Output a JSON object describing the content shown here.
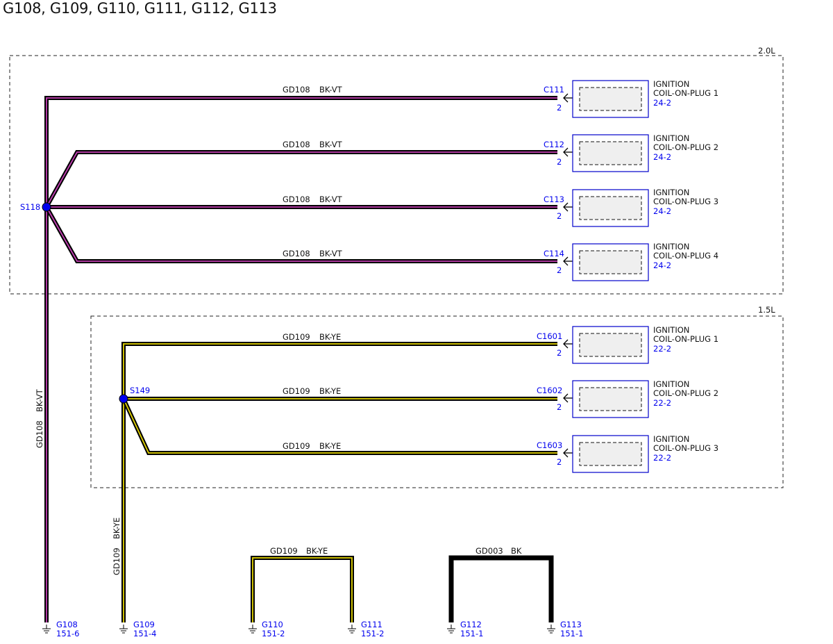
{
  "title": "G108, G109, G110, G111, G112, G113",
  "colors": {
    "wire_outline": "#000000",
    "violet_stripe": "#c23fb3",
    "yellow_stripe": "#e3d400",
    "reference_blue": "#0000ee",
    "connector_border": "#0000cc"
  },
  "sections": [
    {
      "label": "2.0L"
    },
    {
      "label": "1.5L"
    }
  ],
  "splices": [
    {
      "id": "S118"
    },
    {
      "id": "S149"
    }
  ],
  "wires_2_0": [
    {
      "circuit": "GD108",
      "color": "BK-VT",
      "connector": "C111",
      "pin": "2",
      "component_line1": "IGNITION",
      "component_line2": "COIL-ON-PLUG 1",
      "page_ref": "24-2"
    },
    {
      "circuit": "GD108",
      "color": "BK-VT",
      "connector": "C112",
      "pin": "2",
      "component_line1": "IGNITION",
      "component_line2": "COIL-ON-PLUG 2",
      "page_ref": "24-2"
    },
    {
      "circuit": "GD108",
      "color": "BK-VT",
      "connector": "C113",
      "pin": "2",
      "component_line1": "IGNITION",
      "component_line2": "COIL-ON-PLUG 3",
      "page_ref": "24-2"
    },
    {
      "circuit": "GD108",
      "color": "BK-VT",
      "connector": "C114",
      "pin": "2",
      "component_line1": "IGNITION",
      "component_line2": "COIL-ON-PLUG 4",
      "page_ref": "24-2"
    }
  ],
  "wires_1_5": [
    {
      "circuit": "GD109",
      "color": "BK-YE",
      "connector": "C1601",
      "pin": "2",
      "component_line1": "IGNITION",
      "component_line2": "COIL-ON-PLUG 1",
      "page_ref": "22-2"
    },
    {
      "circuit": "GD109",
      "color": "BK-YE",
      "connector": "C1602",
      "pin": "2",
      "component_line1": "IGNITION",
      "component_line2": "COIL-ON-PLUG 2",
      "page_ref": "22-2"
    },
    {
      "circuit": "GD109",
      "color": "BK-YE",
      "connector": "C1603",
      "pin": "2",
      "component_line1": "IGNITION",
      "component_line2": "COIL-ON-PLUG 3",
      "page_ref": "22-2"
    }
  ],
  "vertical_labels": [
    {
      "circuit": "GD108",
      "color": "BK-VT"
    },
    {
      "circuit": "GD109",
      "color": "BK-YE"
    }
  ],
  "jumpers": [
    {
      "circuit": "GD109",
      "color": "BK-YE"
    },
    {
      "circuit": "GD003",
      "color": "BK"
    }
  ],
  "grounds": [
    {
      "id": "G108",
      "page_ref": "151-6"
    },
    {
      "id": "G109",
      "page_ref": "151-4"
    },
    {
      "id": "G110",
      "page_ref": "151-2"
    },
    {
      "id": "G111",
      "page_ref": "151-2"
    },
    {
      "id": "G112",
      "page_ref": "151-1"
    },
    {
      "id": "G113",
      "page_ref": "151-1"
    }
  ]
}
